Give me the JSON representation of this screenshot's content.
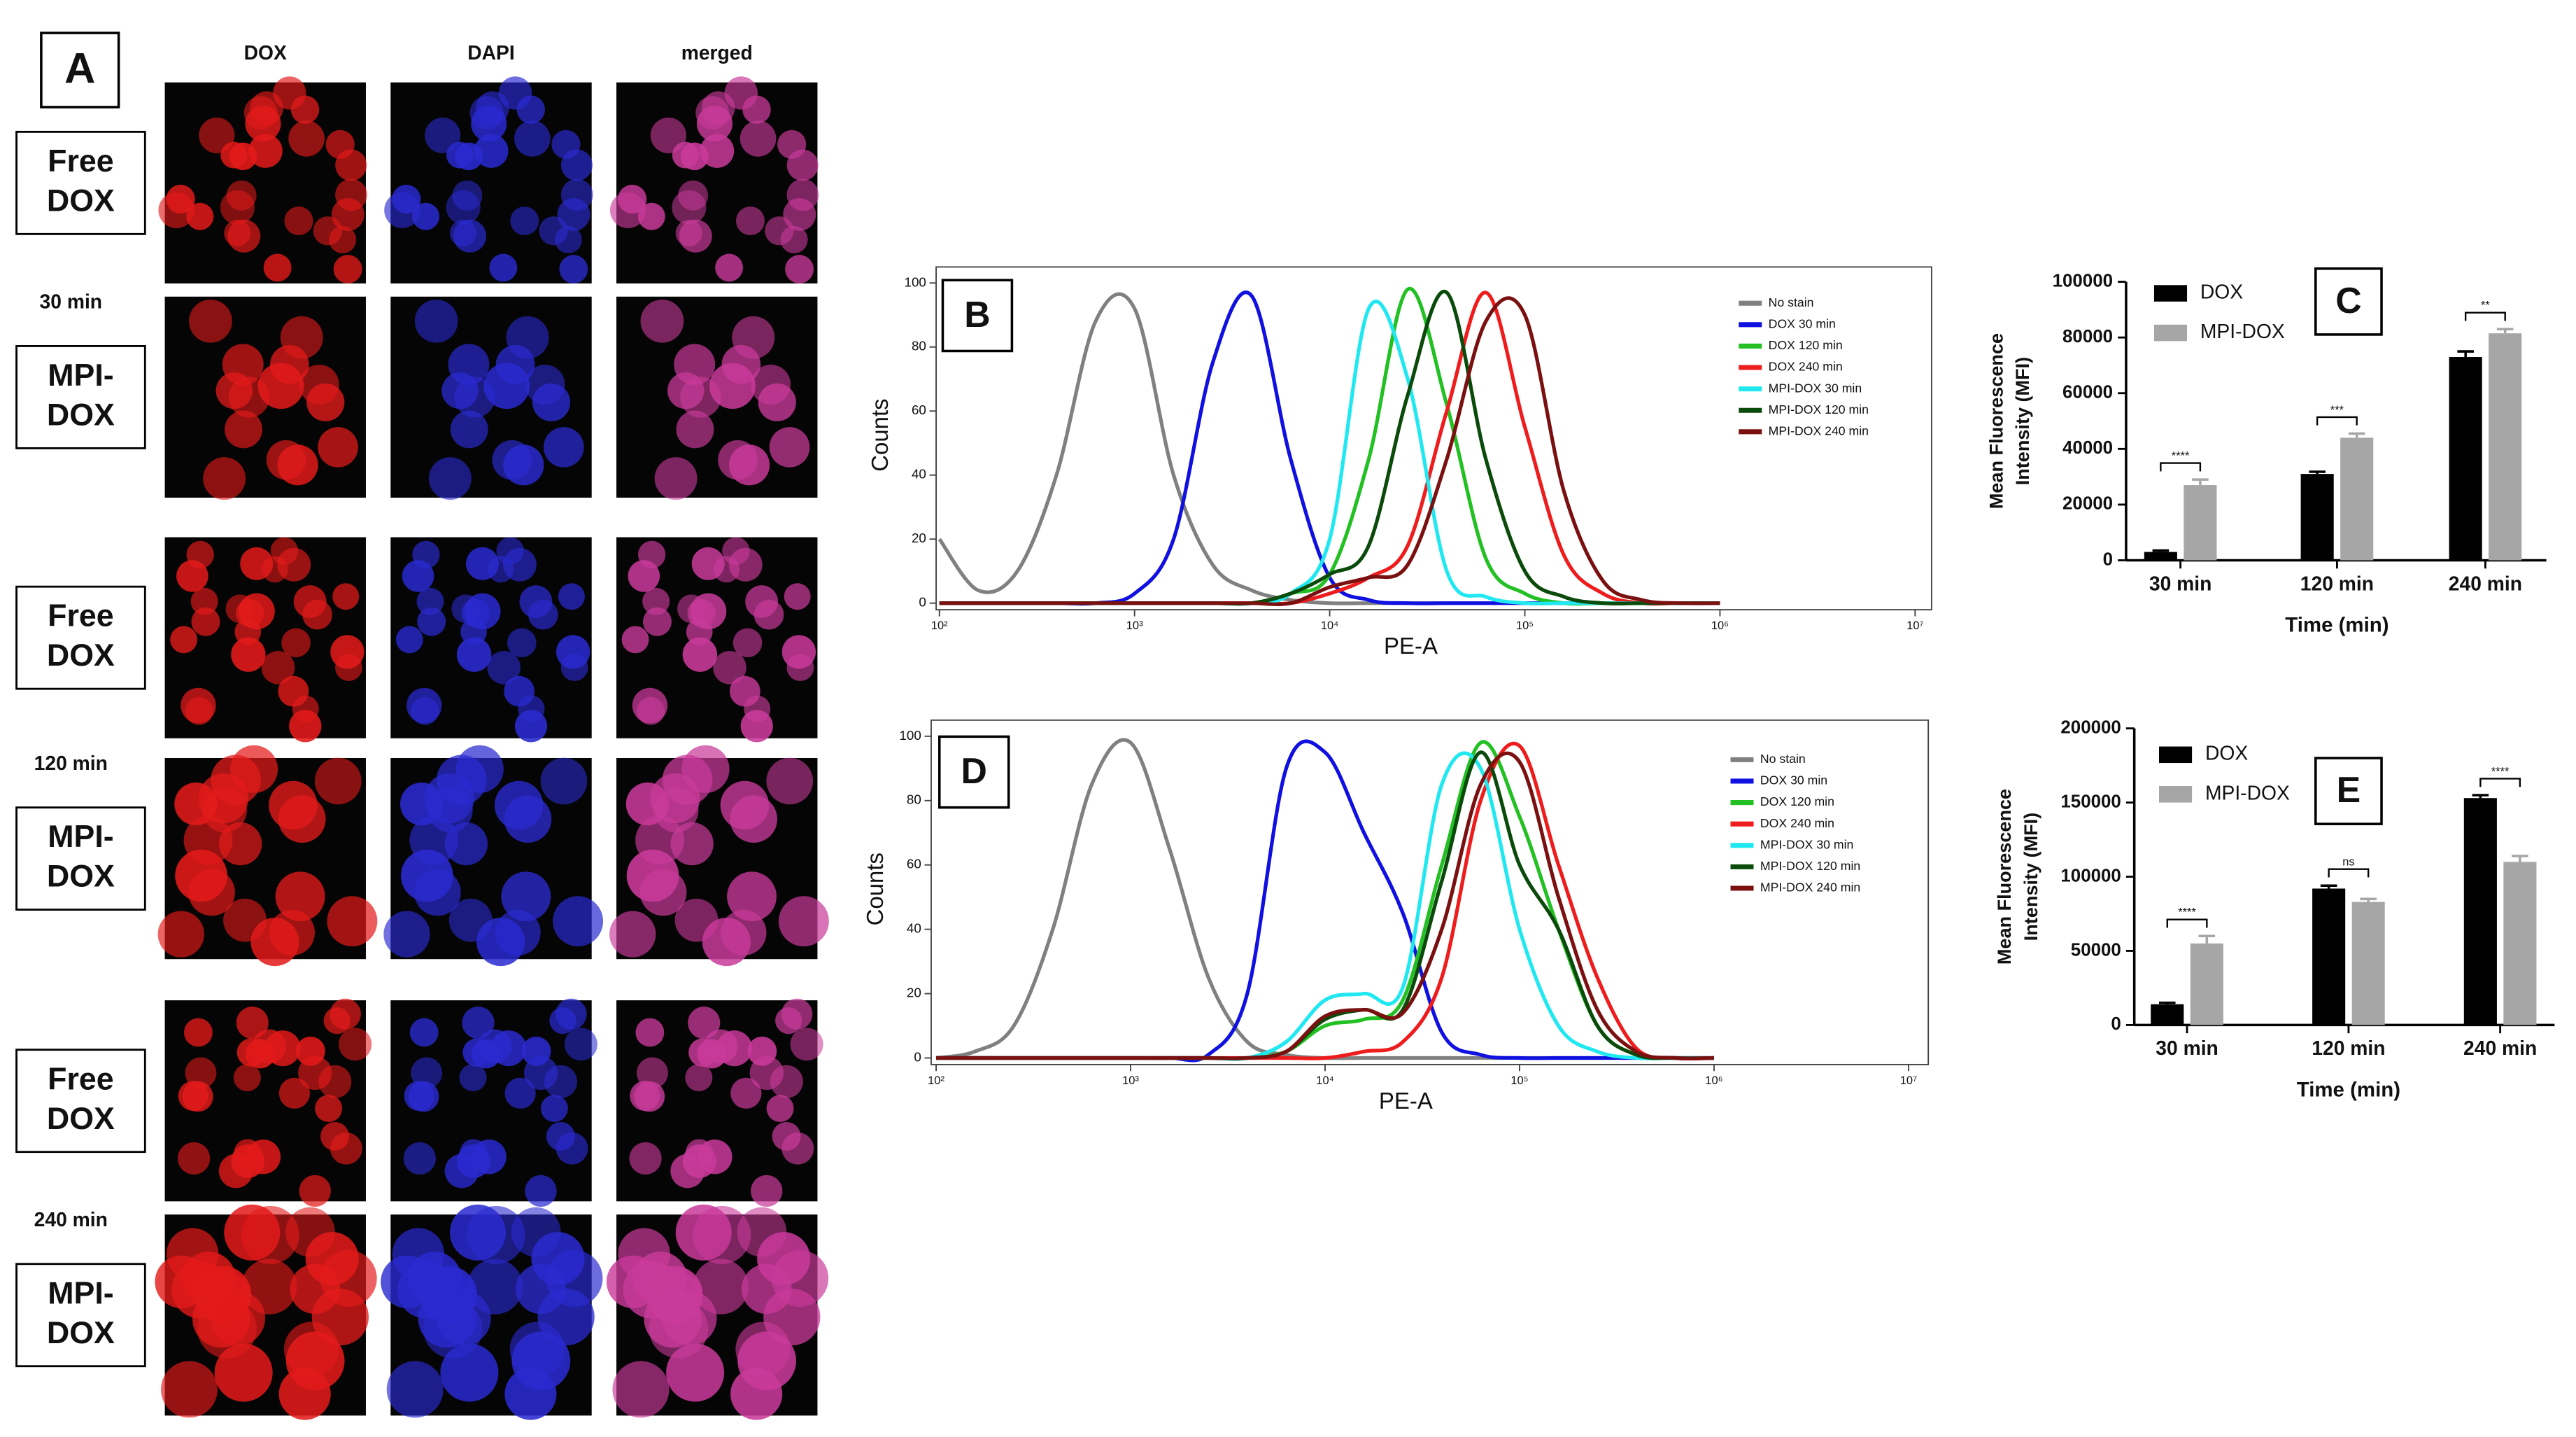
{
  "panel_a": {
    "label": "A",
    "columns": [
      "DOX",
      "DAPI",
      "merged"
    ],
    "groups": [
      {
        "time": "30 min",
        "rows": [
          [
            "Free",
            "DOX"
          ],
          [
            "MPI-",
            "DOX"
          ]
        ]
      },
      {
        "time": "120 min",
        "rows": [
          [
            "Free",
            "DOX"
          ],
          [
            "MPI-",
            "DOX"
          ]
        ]
      },
      {
        "time": "240 min",
        "rows": [
          [
            "Free",
            "DOX"
          ],
          [
            "MPI-",
            "DOX"
          ]
        ]
      }
    ]
  },
  "chart_data": [
    {
      "type": "histogram_lines",
      "label": "B",
      "xlabel": "PE-A",
      "ylabel": "Counts",
      "xscale": "log",
      "xlim": [
        100,
        10000000
      ],
      "ylim": [
        0,
        105
      ],
      "xticks": [
        {
          "value": 100,
          "label": "10²"
        },
        {
          "value": 1000,
          "label": "10³"
        },
        {
          "value": 10000,
          "label": "10⁴"
        },
        {
          "value": 100000,
          "label": "10⁵"
        },
        {
          "value": 1000000,
          "label": "10⁶"
        },
        {
          "value": 10000000,
          "label": "10⁷"
        }
      ],
      "yticks": [
        0,
        20,
        40,
        60,
        80,
        100
      ],
      "x": [
        100,
        158,
        251,
        398,
        631,
        1000,
        1585,
        2512,
        3981,
        6310,
        10000,
        15849,
        25119,
        39811,
        63096,
        100000,
        158489,
        251189,
        398107,
        630957,
        1000000
      ],
      "series": [
        {
          "name": "No stain",
          "color": "#808080",
          "values": [
            20,
            4,
            10,
            40,
            88,
            92,
            40,
            12,
            4,
            1,
            0,
            0,
            0,
            0,
            0,
            0,
            0,
            0,
            0,
            0,
            0
          ]
        },
        {
          "name": "DOX 30 min",
          "color": "#1010e0",
          "values": [
            0,
            0,
            0,
            0,
            0,
            3,
            20,
            75,
            96,
            45,
            8,
            1,
            0,
            0,
            0,
            0,
            0,
            0,
            0,
            0,
            0
          ]
        },
        {
          "name": "DOX 120 min",
          "color": "#22c022",
          "values": [
            0,
            0,
            0,
            0,
            0,
            0,
            0,
            0,
            0,
            3,
            9,
            45,
            98,
            62,
            14,
            3,
            0,
            0,
            0,
            0,
            0
          ]
        },
        {
          "name": "DOX 240 min",
          "color": "#ee1c1c",
          "values": [
            0,
            0,
            0,
            0,
            0,
            0,
            0,
            0,
            0,
            0,
            3,
            8,
            18,
            60,
            97,
            55,
            15,
            3,
            0,
            0,
            0
          ]
        },
        {
          "name": "MPI-DOX 30 min",
          "color": "#20e8f0",
          "values": [
            0,
            0,
            0,
            0,
            0,
            0,
            0,
            0,
            0,
            3,
            20,
            92,
            70,
            10,
            2,
            0,
            0,
            0,
            0,
            0,
            0
          ]
        },
        {
          "name": "MPI-DOX 120 min",
          "color": "#0a4a0a",
          "values": [
            0,
            0,
            0,
            0,
            0,
            0,
            0,
            0,
            0,
            3,
            9,
            18,
            65,
            97,
            45,
            10,
            2,
            0,
            0,
            0,
            0
          ]
        },
        {
          "name": "MPI-DOX 240 min",
          "color": "#7a1010",
          "values": [
            0,
            0,
            0,
            0,
            0,
            0,
            0,
            0,
            0,
            0,
            5,
            8,
            12,
            45,
            88,
            90,
            35,
            7,
            1,
            0,
            0
          ]
        }
      ]
    },
    {
      "type": "bar",
      "label": "C",
      "xlabel": "Time (min)",
      "ylabel": [
        "Mean Fluorescence",
        "Intensity (MFI)"
      ],
      "categories": [
        "30 min",
        "120 min",
        "240 min"
      ],
      "ylim": [
        0,
        100000
      ],
      "yticks": [
        0,
        20000,
        40000,
        60000,
        80000,
        100000
      ],
      "series": [
        {
          "name": "DOX",
          "color": "#000000",
          "values": [
            3000,
            31000,
            73000
          ],
          "errors": [
            500,
            800,
            2000
          ]
        },
        {
          "name": "MPI-DOX",
          "color": "#a6a6a6",
          "values": [
            27000,
            44000,
            81500
          ],
          "errors": [
            2000,
            1500,
            1500
          ]
        }
      ],
      "significance": [
        "****",
        "***",
        "**"
      ]
    },
    {
      "type": "histogram_lines",
      "label": "D",
      "xlabel": "PE-A",
      "ylabel": "Counts",
      "xscale": "log",
      "xlim": [
        100,
        10000000
      ],
      "ylim": [
        0,
        105
      ],
      "xticks": [
        {
          "value": 100,
          "label": "10²"
        },
        {
          "value": 1000,
          "label": "10³"
        },
        {
          "value": 10000,
          "label": "10⁴"
        },
        {
          "value": 100000,
          "label": "10⁵"
        },
        {
          "value": 1000000,
          "label": "10⁶"
        },
        {
          "value": 10000000,
          "label": "10⁷"
        }
      ],
      "yticks": [
        0,
        20,
        40,
        60,
        80,
        100
      ],
      "x": [
        100,
        158,
        251,
        398,
        631,
        1000,
        1585,
        2512,
        3981,
        6310,
        10000,
        15849,
        25119,
        39811,
        63096,
        100000,
        158489,
        251189,
        398107,
        630957,
        1000000
      ],
      "series": [
        {
          "name": "No stain",
          "color": "#808080",
          "values": [
            0,
            2,
            10,
            40,
            85,
            98,
            65,
            25,
            5,
            1,
            0,
            0,
            0,
            0,
            0,
            0,
            0,
            0,
            0,
            0,
            0
          ]
        },
        {
          "name": "DOX 30 min",
          "color": "#1010e0",
          "values": [
            0,
            0,
            0,
            0,
            0,
            0,
            0,
            1,
            20,
            90,
            95,
            70,
            45,
            8,
            1,
            0,
            0,
            0,
            0,
            0,
            0
          ]
        },
        {
          "name": "DOX 120 min",
          "color": "#22c022",
          "values": [
            0,
            0,
            0,
            0,
            0,
            0,
            0,
            0,
            0,
            2,
            10,
            12,
            18,
            60,
            98,
            75,
            40,
            10,
            1,
            0,
            0
          ]
        },
        {
          "name": "DOX 240 min",
          "color": "#ee1c1c",
          "values": [
            0,
            0,
            0,
            0,
            0,
            0,
            0,
            0,
            0,
            0,
            0,
            2,
            5,
            25,
            80,
            97,
            60,
            25,
            3,
            0,
            0
          ]
        },
        {
          "name": "MPI-DOX 30 min",
          "color": "#20e8f0",
          "values": [
            0,
            0,
            0,
            0,
            0,
            0,
            0,
            0,
            0,
            5,
            18,
            20,
            22,
            85,
            90,
            40,
            10,
            2,
            0,
            0,
            0
          ]
        },
        {
          "name": "MPI-DOX 120 min",
          "color": "#0a4a0a",
          "values": [
            0,
            0,
            0,
            0,
            0,
            0,
            0,
            0,
            0,
            2,
            12,
            15,
            15,
            55,
            95,
            60,
            40,
            10,
            1,
            0,
            0
          ]
        },
        {
          "name": "MPI-DOX 240 min",
          "color": "#7a1010",
          "values": [
            0,
            0,
            0,
            0,
            0,
            0,
            0,
            0,
            0,
            2,
            13,
            15,
            14,
            40,
            85,
            92,
            50,
            15,
            2,
            0,
            0
          ]
        }
      ]
    },
    {
      "type": "bar",
      "label": "E",
      "xlabel": "Time (min)",
      "ylabel": [
        "Mean Fluorescence",
        "Intensity (MFI)"
      ],
      "categories": [
        "30 min",
        "120 min",
        "240 min"
      ],
      "ylim": [
        0,
        200000
      ],
      "yticks": [
        0,
        50000,
        100000,
        150000,
        200000
      ],
      "series": [
        {
          "name": "DOX",
          "color": "#000000",
          "values": [
            14000,
            92000,
            153000
          ],
          "errors": [
            1000,
            2000,
            2000
          ]
        },
        {
          "name": "MPI-DOX",
          "color": "#a6a6a6",
          "values": [
            55000,
            83000,
            110000
          ],
          "errors": [
            5000,
            2000,
            4000
          ]
        }
      ],
      "significance": [
        "****",
        "ns",
        "****"
      ]
    }
  ]
}
